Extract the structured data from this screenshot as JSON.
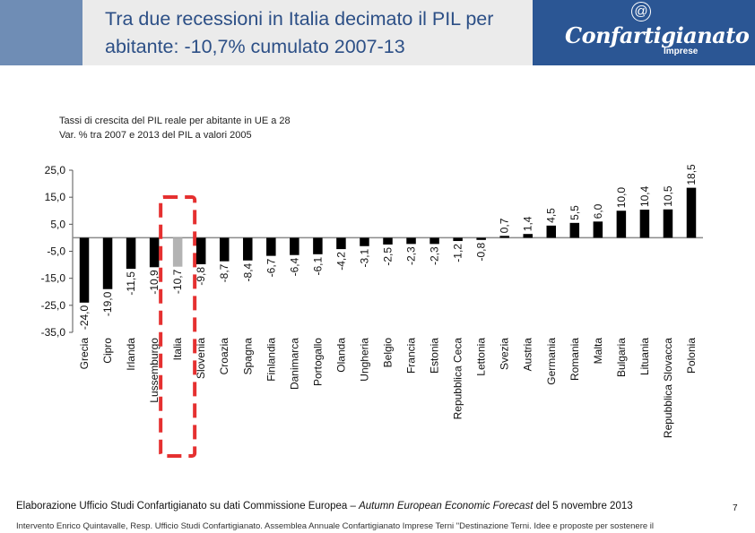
{
  "header": {
    "title": "Tra due recessioni in Italia decimato il PIL per abitante: -10,7% cumulato 2007-13",
    "logo_at": "@",
    "logo_name": "Confartigianato",
    "logo_sub": "Imprese",
    "colors": {
      "left_block": "#6f8db5",
      "title_panel": "#ebebeb",
      "logo_panel": "#2b5694",
      "title_text": "#2c4f86"
    }
  },
  "chart_data": {
    "type": "bar",
    "subtitle_1": "Tassi di crescita del PIL reale per abitante in UE a 28",
    "subtitle_2": "Var. % tra 2007 e 2013 del PIL a valori 2005",
    "ylim": [
      -35,
      25
    ],
    "yticks": [
      "25,0",
      "15,0",
      "5,0",
      "-5,0",
      "-15,0",
      "-25,0",
      "-35,0"
    ],
    "categories": [
      "Grecia",
      "Cipro",
      "Irlanda",
      "Lussemburgo",
      "Italia",
      "Slovenia",
      "Croazia",
      "Spagna",
      "Finlandia",
      "Danimarca",
      "Portogallo",
      "Olanda",
      "Ungheria",
      "Belgio",
      "Francia",
      "Estonia",
      "Repubblica Ceca",
      "Lettonia",
      "Svezia",
      "Austria",
      "Germania",
      "Romania",
      "Malta",
      "Bulgaria",
      "Lituania",
      "Repubblica Slovacca",
      "Polonia"
    ],
    "values": [
      -24.0,
      -19.0,
      -11.5,
      -10.9,
      -10.7,
      -9.8,
      -8.7,
      -8.4,
      -6.7,
      -6.4,
      -6.1,
      -4.2,
      -3.1,
      -2.5,
      -2.3,
      -2.3,
      -1.2,
      -0.8,
      0.7,
      1.4,
      4.5,
      5.5,
      6.0,
      10.0,
      10.4,
      10.5,
      18.5
    ],
    "value_labels": [
      "-24,0",
      "-19,0",
      "-11,5",
      "-10,9",
      "-10,7",
      "-9,8",
      "-8,7",
      "-8,4",
      "-6,7",
      "-6,4",
      "-6,1",
      "-4,2",
      "-3,1",
      "-2,5",
      "-2,3",
      "-2,3",
      "-1,2",
      "-0,8",
      "0,7",
      "1,4",
      "4,5",
      "5,5",
      "6,0",
      "10,0",
      "10,4",
      "10,5",
      "18,5"
    ],
    "highlight": "Italia",
    "bar_color": "#000000",
    "highlight_color": "#b3b3b3",
    "highlight_box_color": "#e53030"
  },
  "footer": {
    "source_prefix": "Elaborazione Ufficio Studi Confartigianato su dati Commissione Europea – ",
    "source_italic": "Autumn European Economic Forecast",
    "source_suffix": " del 5 novembre 2013",
    "page_number": "7",
    "note": "Intervento Enrico Quintavalle, Resp. Ufficio Studi Confartigianato. Assemblea Annuale Confartigianato Imprese Terni \"Destinazione Terni. Idee e proposte per sostenere il"
  }
}
